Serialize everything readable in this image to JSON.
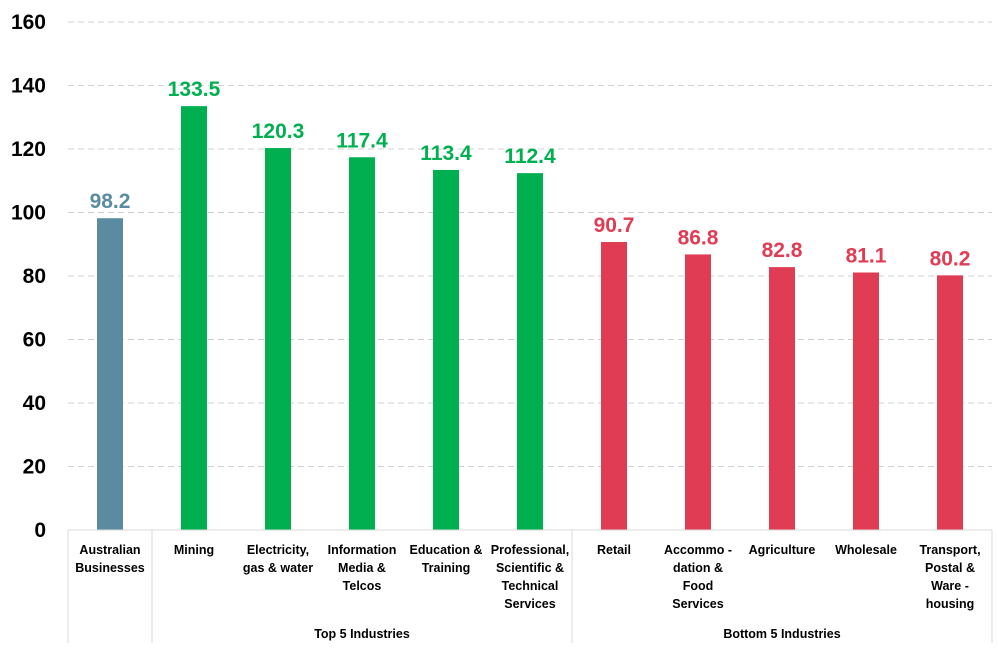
{
  "chart_data": {
    "type": "bar",
    "categories": [
      "Australian Businesses",
      "Mining",
      "Electricity, gas & water",
      "Information Media & Telcos",
      "Education & Training",
      "Professional, Scientific & Technical Services",
      "Retail",
      "Accommo - dation & Food Services",
      "Agriculture",
      "Wholesale",
      "Transport, Postal & Ware - housing"
    ],
    "category_label_lines": [
      [
        "Australian",
        "Businesses"
      ],
      [
        "Mining"
      ],
      [
        "Electricity,",
        "gas & water"
      ],
      [
        "Information",
        "Media &",
        "Telcos"
      ],
      [
        "Education &",
        "Training"
      ],
      [
        "Professional,",
        "Scientific &",
        "Technical",
        "Services"
      ],
      [
        "Retail"
      ],
      [
        "Accommo -",
        "dation &",
        "Food",
        "Services"
      ],
      [
        "Agriculture"
      ],
      [
        "Wholesale"
      ],
      [
        "Transport,",
        "Postal &",
        "Ware -",
        "housing"
      ]
    ],
    "values": [
      98.2,
      133.5,
      120.3,
      117.4,
      113.4,
      112.4,
      90.7,
      86.8,
      82.8,
      81.1,
      80.2
    ],
    "value_labels": [
      "98.2",
      "133.5",
      "120.3",
      "117.4",
      "113.4",
      "112.4",
      "90.7",
      "86.8",
      "82.8",
      "81.1",
      "80.2"
    ],
    "bar_color_keys": [
      "benchmark",
      "top",
      "top",
      "top",
      "top",
      "top",
      "bottom",
      "bottom",
      "bottom",
      "bottom",
      "bottom"
    ],
    "colors": {
      "benchmark": "#5B8BA0",
      "top": "#00B050",
      "bottom": "#E03C53"
    },
    "groups": [
      {
        "label": "Top 5 Industries",
        "start_index": 1,
        "end_index": 5
      },
      {
        "label": "Bottom 5 Industries",
        "start_index": 6,
        "end_index": 10
      }
    ],
    "yticks": [
      0,
      20,
      40,
      60,
      80,
      100,
      120,
      140,
      160
    ],
    "ylim": [
      0,
      160
    ],
    "grid": true,
    "title": "",
    "xlabel": "",
    "ylabel": ""
  }
}
